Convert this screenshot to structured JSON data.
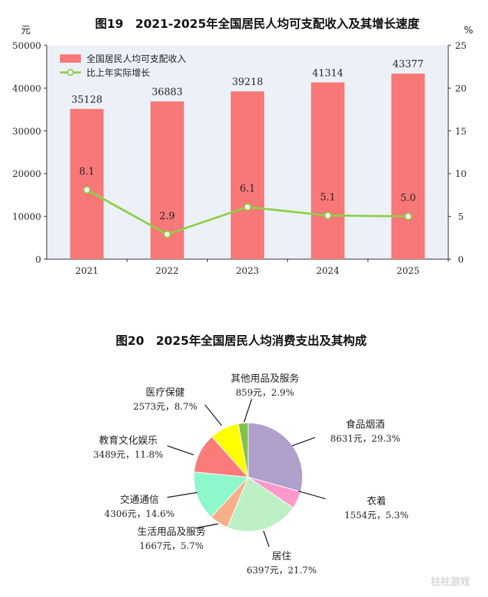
{
  "chart_data": [
    {
      "type": "bar+line",
      "title": "图19　2021-2025年全国居民人均可支配收入及其增长速度",
      "categories": [
        "2021",
        "2022",
        "2023",
        "2024",
        "2025"
      ],
      "y_left": {
        "unit": "元",
        "range": [
          0,
          50000
        ],
        "ticks": [
          "0",
          "10000",
          "20000",
          "30000",
          "40000",
          "50000"
        ]
      },
      "y_right": {
        "unit": "%",
        "range": [
          0,
          25
        ],
        "ticks": [
          "0",
          "5",
          "10",
          "15",
          "20",
          "25"
        ]
      },
      "series": [
        {
          "name": "全国居民人均可支配收入",
          "type": "bar",
          "axis": "left",
          "color": "#f87878",
          "values": [
            35128,
            36883,
            39218,
            41314,
            43377
          ],
          "labels": [
            "35128",
            "36883",
            "39218",
            "41314",
            "43377"
          ]
        },
        {
          "name": "比上年实际增长",
          "type": "line",
          "axis": "right",
          "color": "#8fce4a",
          "values": [
            8.1,
            2.9,
            6.1,
            5.1,
            5.0
          ],
          "labels": [
            "8.1",
            "2.9",
            "6.1",
            "5.1",
            "5.0"
          ]
        }
      ],
      "plot_background": "#ecf1f8",
      "legend_position": "top-left"
    },
    {
      "type": "pie",
      "title": "图20　2025年全国居民人均消费支出及其构成",
      "slices": [
        {
          "name": "食品烟酒",
          "value": 8631,
          "percent": 29.3,
          "label": "8631元，29.3%",
          "color": "#b09fcb"
        },
        {
          "name": "衣着",
          "value": 1554,
          "percent": 5.3,
          "label": "1554元，5.3%",
          "color": "#ff99cc"
        },
        {
          "name": "居住",
          "value": 6397,
          "percent": 21.7,
          "label": "6397元，21.7%",
          "color": "#bdf0c4"
        },
        {
          "name": "生活用品及服务",
          "value": 1667,
          "percent": 5.7,
          "label": "1667元，5.7%",
          "color": "#f9ae8a"
        },
        {
          "name": "交通通信",
          "value": 4306,
          "percent": 14.6,
          "label": "4306元，14.6%",
          "color": "#8ff7cc"
        },
        {
          "name": "教育文化娱乐",
          "value": 3489,
          "percent": 11.8,
          "label": "3489元，11.8%",
          "color": "#fb7b7b"
        },
        {
          "name": "医疗保健",
          "value": 2573,
          "percent": 8.7,
          "label": "2573元，8.7%",
          "color": "#ffff00"
        },
        {
          "name": "其他用品及服务",
          "value": 859,
          "percent": 2.9,
          "label": "859元，2.9%",
          "color": "#7fc24d"
        }
      ]
    }
  ],
  "watermark": "柱柱游戏"
}
